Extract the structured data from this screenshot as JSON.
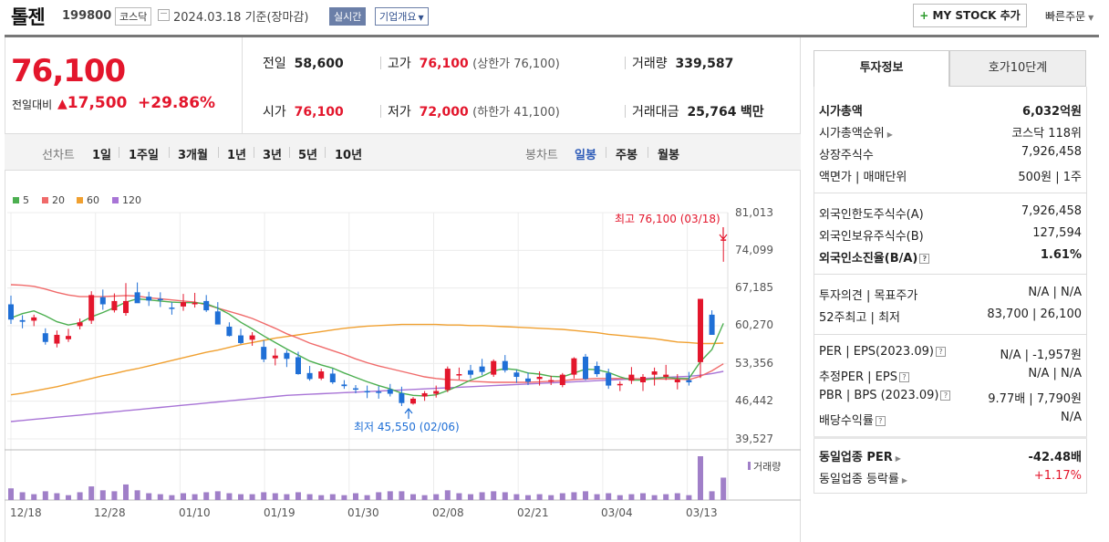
{
  "header": {
    "company": "톨젠",
    "code": "199800",
    "market": "코스닥",
    "date": "2024.03.18 기준(장마감)",
    "realtime": "실시간",
    "overview": "기업개요",
    "mystock": "MY STOCK 추가",
    "quick_order": "빠른주문"
  },
  "price": {
    "current": "76,100",
    "change_label": "전일대비",
    "change": "17,500",
    "change_pct": "+29.86%"
  },
  "stats": {
    "prev_label": "전일",
    "prev": "58,600",
    "high_label": "고가",
    "high": "76,100",
    "upper_limit": "(상한가 76,100)",
    "volume_label": "거래량",
    "volume": "339,587",
    "open_label": "시가",
    "open": "76,100",
    "low_label": "저가",
    "low": "72,000",
    "lower_limit": "(하한가 41,100)",
    "amount_label": "거래대금",
    "amount": "25,764",
    "amount_unit": "백만"
  },
  "tabs": {
    "line_label": "선차트",
    "line": [
      "1일",
      "1주일",
      "3개월",
      "1년",
      "3년",
      "5년",
      "10년"
    ],
    "candle_label": "봉차트",
    "candle": [
      "일봉",
      "주봉",
      "월봉"
    ]
  },
  "colors": {
    "up": "#e3162c",
    "down": "#1f6fd6",
    "ma5": "#4caf50",
    "ma20": "#f06a6a",
    "ma60": "#f0a030",
    "ma120": "#a874d6",
    "volume": "#a07fc8"
  },
  "chart_data": {
    "type": "candlestick",
    "legend": [
      "5",
      "20",
      "60",
      "120"
    ],
    "y_ticks": [
      "81,013",
      "74,099",
      "67,185",
      "60,270",
      "53,356",
      "46,442",
      "39,527"
    ],
    "x_ticks": [
      "12/18",
      "12/28",
      "01/10",
      "01/19",
      "01/30",
      "02/08",
      "02/21",
      "03/04",
      "03/13"
    ],
    "ylim": [
      39527,
      81013
    ],
    "max_label": "최고 76,100 (03/18)",
    "min_label": "최저 45,550 (02/06)",
    "volume_label": "거래량",
    "candles": [
      [
        64200,
        65800,
        60600,
        61400
      ],
      [
        61300,
        62200,
        59800,
        61000
      ],
      [
        61200,
        62300,
        60200,
        61800
      ],
      [
        58900,
        59800,
        56800,
        57300
      ],
      [
        57000,
        59400,
        56300,
        58600
      ],
      [
        57800,
        59700,
        57300,
        58400
      ],
      [
        60200,
        61600,
        59600,
        60900
      ],
      [
        61200,
        66600,
        60600,
        65900
      ],
      [
        65500,
        66900,
        63200,
        64200
      ],
      [
        63100,
        66200,
        62700,
        64800
      ],
      [
        62600,
        68100,
        62100,
        64800
      ],
      [
        66400,
        68200,
        64800,
        64400
      ],
      [
        65600,
        66500,
        63900,
        64900
      ],
      [
        65200,
        66400,
        63700,
        65100
      ],
      [
        63600,
        64600,
        62300,
        63400
      ],
      [
        63800,
        66100,
        63000,
        64600
      ],
      [
        64200,
        66300,
        63600,
        64500
      ],
      [
        64800,
        65900,
        62800,
        63100
      ],
      [
        62900,
        64600,
        60700,
        60500
      ],
      [
        60100,
        60900,
        58300,
        58400
      ],
      [
        58500,
        59700,
        56900,
        57100
      ],
      [
        57700,
        59100,
        56600,
        58500
      ],
      [
        56400,
        57600,
        53600,
        54100
      ],
      [
        54300,
        56100,
        53000,
        54800
      ],
      [
        55300,
        55800,
        52700,
        54200
      ],
      [
        54500,
        55500,
        51300,
        51400
      ],
      [
        51600,
        52900,
        50200,
        50500
      ],
      [
        50600,
        52400,
        50300,
        51900
      ],
      [
        51500,
        52400,
        49600,
        49900
      ],
      [
        49500,
        50300,
        48700,
        49200
      ],
      [
        48800,
        49400,
        47900,
        48700
      ],
      [
        48300,
        49300,
        47000,
        48200
      ],
      [
        48200,
        49200,
        46900,
        48100
      ],
      [
        48600,
        49600,
        47300,
        47800
      ],
      [
        47900,
        49100,
        45550,
        46100
      ],
      [
        46000,
        47200,
        45800,
        46900
      ],
      [
        47300,
        48300,
        46500,
        47900
      ],
      [
        47800,
        49300,
        47100,
        48300
      ],
      [
        48500,
        52800,
        48100,
        52400
      ],
      [
        51200,
        52600,
        50400,
        51400
      ],
      [
        52100,
        53100,
        50600,
        51300
      ],
      [
        52800,
        54200,
        51200,
        51800
      ],
      [
        51300,
        54100,
        50900,
        53800
      ],
      [
        53800,
        54900,
        51700,
        52100
      ],
      [
        51700,
        52200,
        49800,
        50900
      ],
      [
        50600,
        51700,
        49400,
        50000
      ],
      [
        50500,
        51900,
        49300,
        50900
      ],
      [
        50000,
        51100,
        49400,
        50300
      ],
      [
        49400,
        51600,
        49000,
        51300
      ],
      [
        51300,
        54500,
        50600,
        54300
      ],
      [
        54600,
        55100,
        50300,
        50500
      ],
      [
        52900,
        53700,
        50900,
        51400
      ],
      [
        51600,
        52400,
        48700,
        49300
      ],
      [
        49400,
        50100,
        48300,
        49600
      ],
      [
        50200,
        52700,
        49600,
        51300
      ],
      [
        49900,
        51400,
        48300,
        50900
      ],
      [
        51300,
        52600,
        49300,
        51900
      ],
      [
        50900,
        53100,
        50300,
        51300
      ],
      [
        49900,
        51400,
        48600,
        50400
      ],
      [
        50300,
        51800,
        49300,
        49900
      ],
      [
        53600,
        65200,
        50700,
        65200
      ],
      [
        62300,
        63100,
        58600,
        58600
      ],
      [
        76100,
        76100,
        72000,
        76100
      ]
    ],
    "ma5": [
      61700,
      62500,
      63000,
      62100,
      61000,
      60400,
      60800,
      61900,
      62700,
      63600,
      64600,
      65200,
      65000,
      64800,
      64600,
      64500,
      64500,
      64300,
      63500,
      62400,
      60900,
      59700,
      58400,
      57200,
      56000,
      54900,
      53800,
      53100,
      52500,
      51600,
      50800,
      50000,
      49300,
      48700,
      47900,
      47500,
      47400,
      47600,
      48400,
      49300,
      50300,
      51000,
      52000,
      52400,
      52200,
      51600,
      51400,
      51000,
      50900,
      51600,
      52300,
      52200,
      51700,
      50900,
      50300,
      50300,
      50600,
      50800,
      50600,
      50600,
      53700,
      55900,
      60700
    ],
    "ma20": [
      67800,
      67700,
      67500,
      67000,
      66400,
      65900,
      65600,
      65600,
      65600,
      65700,
      65800,
      65700,
      65400,
      65200,
      65000,
      64800,
      64600,
      64100,
      63500,
      62900,
      62300,
      61600,
      60700,
      59800,
      58800,
      58000,
      57100,
      56400,
      55700,
      55000,
      54200,
      53500,
      52900,
      52400,
      51900,
      51400,
      50900,
      50600,
      50400,
      50300,
      50100,
      50000,
      49900,
      49900,
      49900,
      49900,
      50000,
      50100,
      50200,
      50400,
      50500,
      50600,
      50600,
      50600,
      50600,
      50500,
      50500,
      50500,
      50500,
      50400,
      51000,
      52000,
      53300
    ],
    "ma60": [
      47600,
      47900,
      48300,
      48700,
      49100,
      49600,
      50100,
      50600,
      51100,
      51500,
      52000,
      52400,
      52900,
      53400,
      53900,
      54400,
      54900,
      55400,
      55800,
      56300,
      56800,
      57200,
      57600,
      58000,
      58300,
      58600,
      58900,
      59200,
      59500,
      59800,
      60000,
      60200,
      60300,
      60400,
      60500,
      60500,
      60500,
      60500,
      60400,
      60400,
      60300,
      60300,
      60200,
      60100,
      60000,
      59900,
      59800,
      59700,
      59600,
      59400,
      59200,
      59000,
      58700,
      58500,
      58300,
      58100,
      57900,
      57600,
      57300,
      57200,
      57000,
      57000,
      57100
    ],
    "ma120": [
      42700,
      42900,
      43100,
      43300,
      43500,
      43700,
      43900,
      44100,
      44300,
      44500,
      44700,
      44900,
      45100,
      45300,
      45500,
      45700,
      45900,
      46100,
      46300,
      46500,
      46700,
      46900,
      47100,
      47300,
      47500,
      47600,
      47700,
      47800,
      47900,
      48000,
      48100,
      48200,
      48300,
      48400,
      48500,
      48600,
      48700,
      48800,
      48900,
      49000,
      49100,
      49200,
      49300,
      49400,
      49500,
      49600,
      49700,
      49800,
      49900,
      50000,
      50100,
      50200,
      50300,
      50400,
      50500,
      50600,
      50700,
      50800,
      50900,
      51000,
      51200,
      51500,
      51900
    ],
    "volume": [
      12,
      8,
      6,
      9,
      7,
      5,
      8,
      14,
      10,
      9,
      16,
      10,
      7,
      6,
      5,
      7,
      6,
      8,
      9,
      7,
      6,
      6,
      8,
      7,
      6,
      8,
      6,
      5,
      6,
      5,
      7,
      5,
      8,
      9,
      9,
      6,
      5,
      6,
      10,
      7,
      6,
      8,
      9,
      8,
      6,
      5,
      6,
      5,
      7,
      8,
      9,
      6,
      7,
      5,
      6,
      7,
      5,
      6,
      7,
      5,
      45,
      9,
      23
    ]
  },
  "tabs_right": {
    "info": "투자정보",
    "hoga": "호가10단계"
  },
  "info": {
    "cap_label": "시가총액",
    "cap": "6,032억원",
    "cap_rank_label": "시가총액순위",
    "cap_rank": "코스닥 118위",
    "shares_label": "상장주식수",
    "shares": "7,926,458",
    "face_label": "액면가 | 매매단위",
    "face": "500원 | 1주",
    "foreign_limit_label": "외국인한도주식수(A)",
    "foreign_limit": "7,926,458",
    "foreign_hold_label": "외국인보유주식수(B)",
    "foreign_hold": "127,594",
    "foreign_ratio_label": "외국인소진율(B/A)",
    "foreign_ratio": "1.61%",
    "opinion_label": "투자의견 | 목표주가",
    "opinion": "N/A | N/A",
    "range_label": "52주최고 | 최저",
    "range": "83,700 | 26,100",
    "per_label": "PER | EPS(2023.09)",
    "per": "N/A | -1,957원",
    "est_label": "추정PER | EPS",
    "est": "N/A | N/A",
    "pbr_label": "PBR | BPS (2023.09)",
    "pbr": "9.77배 | 7,790원",
    "div_label": "배당수익률",
    "div": "N/A",
    "ind_per_label": "동일업종 PER",
    "ind_per": "-42.48배",
    "ind_rate_label": "동일업종 등락률",
    "ind_rate": "+1.17%"
  }
}
